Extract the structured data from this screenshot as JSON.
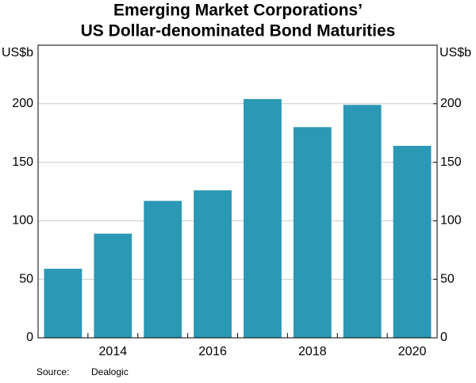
{
  "chart_data": {
    "type": "bar",
    "title": [
      "Emerging Market Corporations’",
      "US Dollar-denominated Bond Maturities"
    ],
    "y_label": "US$b",
    "y2_label": "US$b",
    "categories": [
      null,
      "2014",
      null,
      "2016",
      null,
      "2018",
      null,
      "2020"
    ],
    "values": [
      59,
      89,
      117,
      126,
      204,
      180,
      199,
      164
    ],
    "color": "#2b98b4",
    "ylim": [
      0,
      250
    ],
    "yticks": [
      0,
      50,
      100,
      150,
      200
    ],
    "y2lim": [
      0,
      250
    ],
    "y2ticks": [
      0,
      50,
      100,
      150,
      200
    ],
    "grid": true,
    "source_label": "Source:",
    "source": "Dealogic"
  }
}
